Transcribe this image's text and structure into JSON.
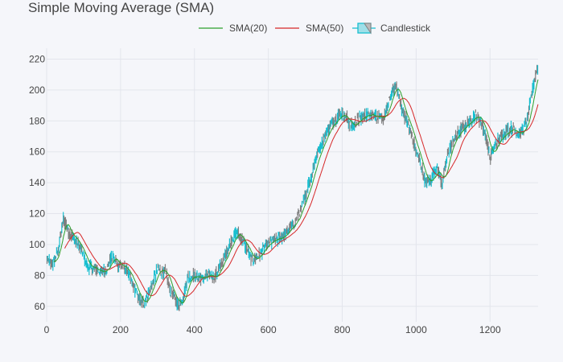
{
  "chart_data": {
    "type": "line",
    "title": "Simple Moving Average (SMA)",
    "xlabel": "",
    "ylabel": "",
    "xlim": [
      0,
      1330
    ],
    "ylim": [
      50,
      227
    ],
    "x_ticks": [
      0,
      200,
      400,
      600,
      800,
      1000,
      1200
    ],
    "y_ticks": [
      60,
      80,
      100,
      120,
      140,
      160,
      180,
      200,
      220
    ],
    "grid": true,
    "legend": "top-center",
    "series": [
      {
        "name": "SMA(20)",
        "color": "#2ca02c"
      },
      {
        "name": "SMA(50)",
        "color": "#d62728"
      },
      {
        "name": "Candlestick",
        "color": "#17becf",
        "decreasing_color": "#7f7f7f"
      }
    ],
    "price_path": {
      "x": [
        0,
        15,
        30,
        45,
        60,
        80,
        95,
        110,
        130,
        150,
        165,
        175,
        195,
        215,
        235,
        255,
        265,
        285,
        300,
        320,
        335,
        355,
        370,
        380,
        395,
        420,
        440,
        455,
        470,
        485,
        500,
        515,
        535,
        555,
        570,
        590,
        610,
        630,
        650,
        670,
        690,
        710,
        730,
        750,
        765,
        780,
        795,
        810,
        825,
        840,
        855,
        870,
        885,
        900,
        915,
        930,
        945,
        960,
        975,
        990,
        1010,
        1025,
        1040,
        1055,
        1070,
        1085,
        1100,
        1120,
        1140,
        1160,
        1175,
        1190,
        1200,
        1215,
        1230,
        1245,
        1260,
        1275,
        1290,
        1300,
        1310,
        1320,
        1330
      ],
      "y": [
        90,
        87,
        96,
        117,
        108,
        102,
        95,
        86,
        84,
        82,
        86,
        92,
        87,
        84,
        73,
        62,
        63,
        74,
        84,
        82,
        70,
        61,
        66,
        78,
        80,
        78,
        80,
        79,
        86,
        94,
        103,
        108,
        100,
        90,
        92,
        98,
        102,
        104,
        108,
        114,
        124,
        140,
        157,
        169,
        176,
        181,
        185,
        182,
        176,
        180,
        182,
        185,
        184,
        181,
        183,
        196,
        204,
        188,
        180,
        168,
        153,
        140,
        142,
        150,
        139,
        158,
        168,
        174,
        179,
        184,
        180,
        168,
        156,
        165,
        170,
        174,
        175,
        172,
        174,
        180,
        194,
        208,
        216
      ]
    }
  }
}
